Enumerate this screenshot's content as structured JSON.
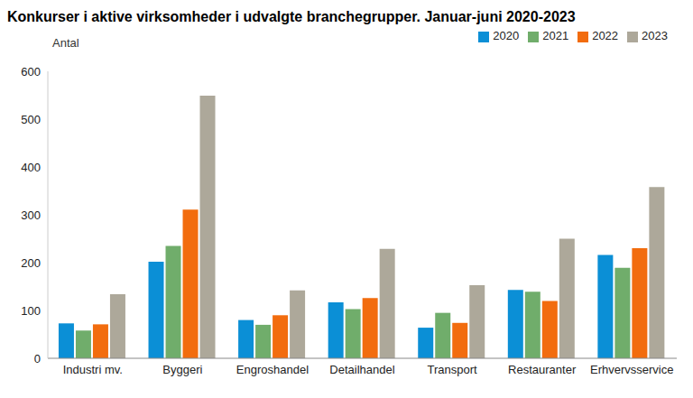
{
  "chart_data": {
    "type": "bar",
    "title": "Konkurser i aktive virksomheder i udvalgte branchegrupper. Januar-juni 2020-2023",
    "y_label": "Antal",
    "categories": [
      "Industri mv.",
      "Byggeri",
      "Engroshandel",
      "Detailhandel",
      "Transport",
      "Restauranter",
      "Erhvervsservice"
    ],
    "series": [
      {
        "name": "2020",
        "color": "#0b8fd6",
        "values": [
          73,
          202,
          80,
          117,
          64,
          143,
          216
        ]
      },
      {
        "name": "2021",
        "color": "#70ad6b",
        "values": [
          58,
          235,
          70,
          103,
          95,
          139,
          189
        ]
      },
      {
        "name": "2022",
        "color": "#f26c0e",
        "values": [
          71,
          311,
          90,
          126,
          74,
          120,
          230
        ]
      },
      {
        "name": "2023",
        "color": "#ada89a",
        "values": [
          134,
          549,
          142,
          229,
          153,
          250,
          358
        ]
      }
    ],
    "ylim": [
      0,
      600
    ],
    "yticks": [
      0,
      100,
      200,
      300,
      400,
      500,
      600
    ],
    "grid": false,
    "legend": "upper right"
  }
}
